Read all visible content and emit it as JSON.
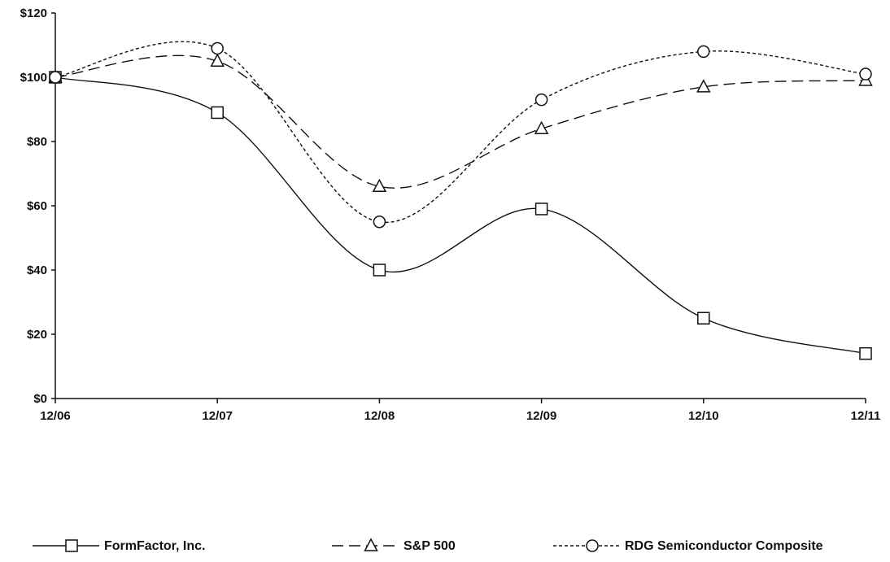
{
  "chart_data": {
    "type": "line",
    "title": "",
    "xlabel": "",
    "ylabel": "",
    "categories": [
      "12/06",
      "12/07",
      "12/08",
      "12/09",
      "12/10",
      "12/11"
    ],
    "ylim": [
      0,
      120
    ],
    "yticks": [
      0,
      20,
      40,
      60,
      80,
      100,
      120
    ],
    "ytick_labels": [
      "$0",
      "$20",
      "$40",
      "$60",
      "$80",
      "$100",
      "$120"
    ],
    "grid": false,
    "legend_position": "bottom",
    "series": [
      {
        "name": "FormFactor, Inc.",
        "values": [
          100,
          89,
          40,
          59,
          25,
          14
        ],
        "line_style": "solid",
        "marker": "square"
      },
      {
        "name": "S&P 500",
        "values": [
          100,
          105,
          66,
          84,
          97,
          99
        ],
        "line_style": "dashed",
        "marker": "triangle"
      },
      {
        "name": "RDG Semiconductor Composite",
        "values": [
          100,
          109,
          55,
          93,
          108,
          101
        ],
        "line_style": "dotted",
        "marker": "circle"
      }
    ]
  }
}
